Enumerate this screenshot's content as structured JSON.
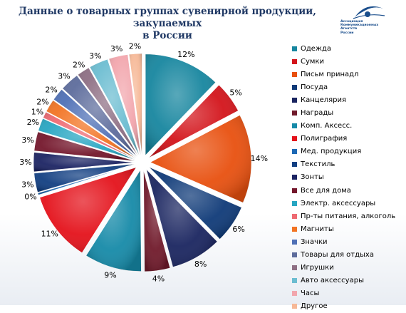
{
  "logo": {
    "lines": [
      "Ассоциация",
      "Коммуникационных",
      "Агентств",
      "России"
    ]
  },
  "chart_data": {
    "type": "pie",
    "title_lines": [
      "Данные о товарных группах сувенирной продукции, закупаемых",
      "в России"
    ],
    "legend_position": "right",
    "categories": [
      "Одежда",
      "Сумки",
      "Письм принадл",
      "Посуда",
      "Канцелярия",
      "Награды",
      "Комп. Аксесс.",
      "Полиграфия",
      "Мед. продукция",
      "Текстиль",
      "Зонты",
      "Все для дома",
      "Электр. аксессуары",
      "Пр-ты питания, алкоголь",
      "Магниты",
      "Значки",
      "Товары для отдыха",
      "Игрушки",
      "Авто аксессуары",
      "Часы",
      "Другое"
    ],
    "values": [
      12,
      5,
      14,
      6,
      8,
      4,
      9,
      11,
      0.3,
      3,
      3,
      3,
      2,
      1,
      2,
      2,
      3,
      2,
      3,
      3,
      2
    ],
    "labels": [
      "12%",
      "5%",
      "14%",
      "6%",
      "8%",
      "4%",
      "9%",
      "11%",
      "0%",
      "3%",
      "3%",
      "3%",
      "2%",
      "1%",
      "2%",
      "2%",
      "3%",
      "2%",
      "3%",
      "3%",
      "2%"
    ],
    "colors": [
      "#17869f",
      "#d3141b",
      "#e8500f",
      "#0f3a78",
      "#1a2560",
      "#701a2b",
      "#168aa8",
      "#e4121b",
      "#1d69b5",
      "#123f82",
      "#1c2463",
      "#74172c",
      "#28a6c2",
      "#ee6a72",
      "#f27424",
      "#4f70b6",
      "#5d6c9c",
      "#8e6f84",
      "#6cbdd1",
      "#f2a6ad",
      "#f6b998"
    ]
  }
}
